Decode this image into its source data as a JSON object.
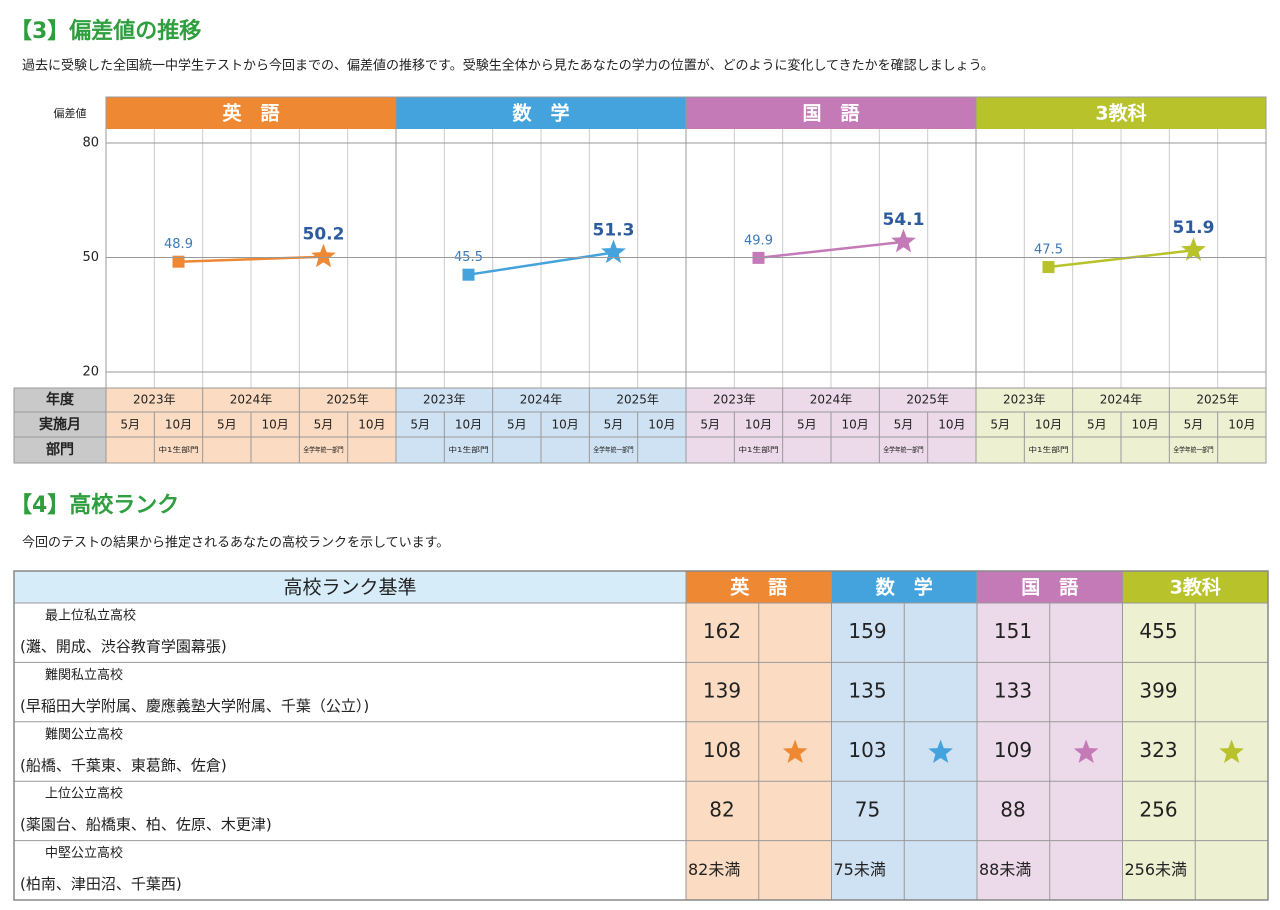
{
  "section3": {
    "title": "【3】偏差値の推移",
    "description": "過去に受験した全国統一中学生テストから今回までの、偏差値の推移です。受験生全体から見たあなたの学力の位置が、どのように変化してきたかを確認しましょう。"
  },
  "chart_data": {
    "type": "line",
    "y_label": "偏差値",
    "ylim": [
      20,
      80
    ],
    "yticks": [
      20,
      50,
      80
    ],
    "grid": true,
    "row_labels": [
      "年度",
      "実施月",
      "部門"
    ],
    "years": [
      "2023年",
      "2024年",
      "2025年"
    ],
    "categories": [
      "5月",
      "10月",
      "5月",
      "10月",
      "5月",
      "10月"
    ],
    "divisions": [
      null,
      "中1生部門",
      null,
      null,
      "全学年統一部門",
      null
    ],
    "series": [
      {
        "name": "英　語",
        "color": "#ee8833",
        "background": "#fbdcc2",
        "values": [
          null,
          48.9,
          null,
          null,
          50.2,
          null
        ]
      },
      {
        "name": "数　学",
        "color": "#44a3dc",
        "background": "#cfe2f3",
        "values": [
          null,
          45.5,
          null,
          null,
          51.3,
          null
        ]
      },
      {
        "name": "国　語",
        "color": "#c57ab8",
        "background": "#ecdaeb",
        "values": [
          null,
          49.9,
          null,
          null,
          54.1,
          null
        ]
      },
      {
        "name": "3教科",
        "color": "#b8c22a",
        "background": "#eef0d2",
        "values": [
          null,
          47.5,
          null,
          null,
          51.9,
          null
        ]
      }
    ]
  },
  "section4": {
    "title": "【4】高校ランク",
    "description": "今回のテストの結果から推定されるあなたの高校ランクを示しています。",
    "header": "高校ランク基準",
    "rows": [
      {
        "name": "最上位私立高校",
        "schools": "(灘、開成、渋谷教育学園幕張)",
        "scores": [
          162,
          159,
          151,
          455
        ],
        "marked": false
      },
      {
        "name": "難関私立高校",
        "schools": "(早稲田大学附属、慶應義塾大学附属、千葉（公立）)",
        "scores": [
          139,
          135,
          133,
          399
        ],
        "marked": false
      },
      {
        "name": "難関公立高校",
        "schools": "(船橋、千葉東、東葛飾、佐倉)",
        "scores": [
          108,
          103,
          109,
          323
        ],
        "marked": true
      },
      {
        "name": "上位公立高校",
        "schools": "(薬園台、船橋東、柏、佐原、木更津)",
        "scores": [
          82,
          75,
          88,
          256
        ],
        "marked": false
      },
      {
        "name": "中堅公立高校",
        "schools": "(柏南、津田沼、千葉西)",
        "scores": [
          "82未満",
          "75未満",
          "88未満",
          "256未満"
        ],
        "marked": false
      }
    ]
  }
}
